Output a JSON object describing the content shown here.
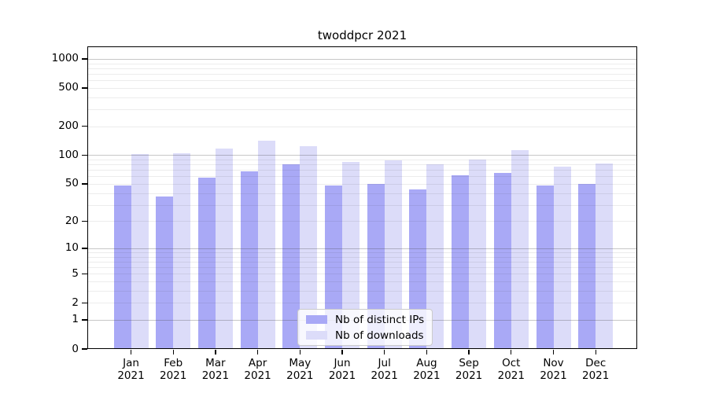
{
  "title": "twoddpcr 2021",
  "chart_data": {
    "type": "bar",
    "title": "twoddpcr 2021",
    "categories": [
      "Jan 2021",
      "Feb 2021",
      "Mar 2021",
      "Apr 2021",
      "May 2021",
      "Jun 2021",
      "Jul 2021",
      "Aug 2021",
      "Sep 2021",
      "Oct 2021",
      "Nov 2021",
      "Dec 2021"
    ],
    "series": [
      {
        "name": "Nb of distinct IPs",
        "color": "#a9a9f6",
        "values": [
          48,
          37,
          58,
          68,
          81,
          48,
          50,
          44,
          62,
          65,
          48,
          50
        ]
      },
      {
        "name": "Nb of downloads",
        "color": "#dcdcf9",
        "values": [
          103,
          105,
          117,
          143,
          125,
          85,
          89,
          81,
          90,
          113,
          76,
          82
        ]
      }
    ],
    "xlabel": "",
    "ylabel": "",
    "yscale": "log1p",
    "yticks": [
      0,
      1,
      2,
      5,
      10,
      20,
      50,
      100,
      200,
      500,
      1000
    ],
    "ylim": [
      0,
      1400
    ],
    "grid": true,
    "grid_minor_values": [
      2,
      3,
      4,
      5,
      6,
      7,
      8,
      9,
      20,
      30,
      40,
      50,
      60,
      70,
      80,
      90,
      200,
      300,
      400,
      500,
      600,
      700,
      800,
      900
    ],
    "grid_major_values": [
      1,
      10,
      100,
      1000
    ],
    "legend_position": "lower center"
  }
}
